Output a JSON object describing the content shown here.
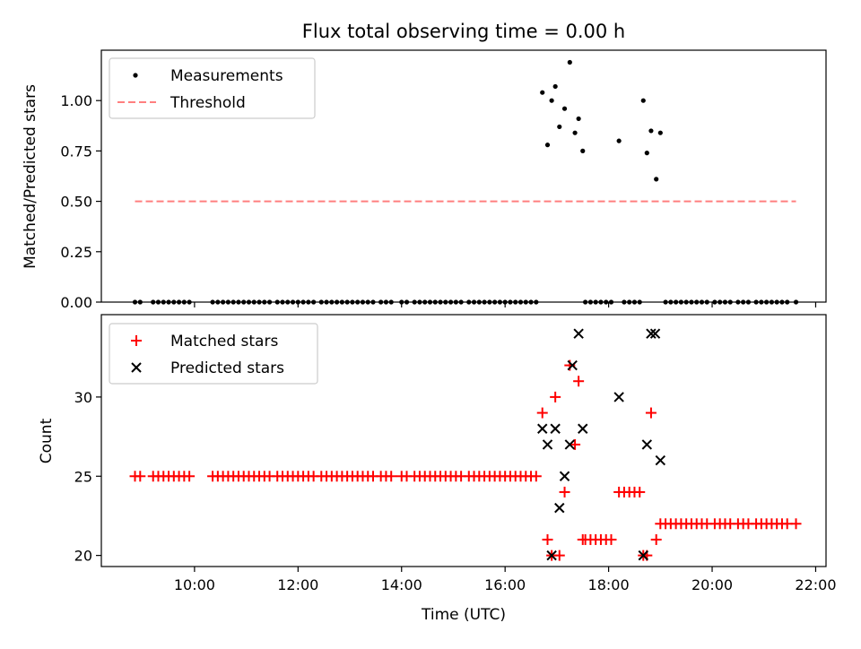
{
  "chart_data": [
    {
      "type": "scatter",
      "title": "Flux total observing time = 0.00 h",
      "xlabel": "",
      "ylabel": "Matched/Predicted stars",
      "ylim": [
        0,
        1.25
      ],
      "xlim_hours": [
        8.2,
        22.2
      ],
      "yticks": [
        0.0,
        0.25,
        0.5,
        0.75,
        1.0
      ],
      "ytick_labels": [
        "0.00",
        "0.25",
        "0.50",
        "0.75",
        "1.00"
      ],
      "legend_position": "top-left",
      "series": [
        {
          "name": "Measurements",
          "marker": "dot",
          "color": "#000000",
          "x_hours": [
            8.85,
            8.95,
            9.2,
            9.3,
            9.4,
            9.5,
            9.6,
            9.7,
            9.8,
            9.9,
            10.35,
            10.45,
            10.55,
            10.65,
            10.75,
            10.85,
            10.95,
            11.05,
            11.15,
            11.25,
            11.35,
            11.45,
            11.6,
            11.7,
            11.8,
            11.9,
            12.0,
            12.1,
            12.2,
            12.3,
            12.45,
            12.55,
            12.65,
            12.75,
            12.85,
            12.95,
            13.05,
            13.15,
            13.25,
            13.35,
            13.45,
            13.6,
            13.7,
            13.8,
            14.0,
            14.1,
            14.25,
            14.35,
            14.45,
            14.55,
            14.65,
            14.75,
            14.85,
            14.95,
            15.05,
            15.15,
            15.3,
            15.4,
            15.5,
            15.6,
            15.7,
            15.8,
            15.9,
            16.0,
            16.1,
            16.2,
            16.3,
            16.4,
            16.5,
            16.6,
            16.72,
            16.82,
            16.9,
            16.97,
            17.05,
            17.15,
            17.25,
            17.35,
            17.42,
            17.5,
            17.55,
            17.65,
            17.75,
            17.85,
            17.95,
            18.05,
            18.2,
            18.3,
            18.4,
            18.5,
            18.6,
            18.67,
            18.74,
            18.82,
            18.92,
            19.0,
            19.1,
            19.2,
            19.3,
            19.4,
            19.5,
            19.6,
            19.7,
            19.8,
            19.9,
            20.05,
            20.15,
            20.25,
            20.35,
            20.5,
            20.6,
            20.7,
            20.85,
            20.95,
            21.05,
            21.15,
            21.25,
            21.35,
            21.45,
            21.62
          ],
          "y": [
            0,
            0,
            0,
            0,
            0,
            0,
            0,
            0,
            0,
            0,
            0,
            0,
            0,
            0,
            0,
            0,
            0,
            0,
            0,
            0,
            0,
            0,
            0,
            0,
            0,
            0,
            0,
            0,
            0,
            0,
            0,
            0,
            0,
            0,
            0,
            0,
            0,
            0,
            0,
            0,
            0,
            0,
            0,
            0,
            0,
            0,
            0,
            0,
            0,
            0,
            0,
            0,
            0,
            0,
            0,
            0,
            0,
            0,
            0,
            0,
            0,
            0,
            0,
            0,
            0,
            0,
            0,
            0,
            0,
            0,
            1.04,
            0.78,
            1.0,
            1.07,
            0.87,
            0.96,
            1.19,
            0.84,
            0.91,
            0.75,
            0,
            0,
            0,
            0,
            0,
            0,
            0.8,
            0,
            0,
            0,
            0,
            1.0,
            0.74,
            0.85,
            0.61,
            0.84,
            0,
            0,
            0,
            0,
            0,
            0,
            0,
            0,
            0,
            0,
            0,
            0,
            0,
            0,
            0,
            0,
            0,
            0,
            0,
            0,
            0,
            0,
            0,
            0
          ]
        },
        {
          "name": "Threshold",
          "marker": "dashed-line",
          "color": "#ff7f7f",
          "x_hours": [
            8.85,
            21.62
          ],
          "y": [
            0.5,
            0.5
          ]
        }
      ]
    },
    {
      "type": "scatter",
      "title": "",
      "xlabel": "Time (UTC)",
      "ylabel": "Count",
      "ylim": [
        19.3,
        35.2
      ],
      "xlim_hours": [
        8.2,
        22.2
      ],
      "yticks": [
        20,
        25,
        30
      ],
      "ytick_labels": [
        "20",
        "25",
        "30"
      ],
      "xticks_hours": [
        10,
        12,
        14,
        16,
        18,
        20,
        22
      ],
      "xtick_labels": [
        "10:00",
        "12:00",
        "14:00",
        "16:00",
        "18:00",
        "20:00",
        "22:00"
      ],
      "legend_position": "top-left",
      "series": [
        {
          "name": "Matched stars",
          "marker": "plus",
          "color": "#ff0000",
          "x_hours": [
            8.85,
            8.95,
            9.2,
            9.3,
            9.4,
            9.5,
            9.6,
            9.7,
            9.8,
            9.9,
            10.35,
            10.45,
            10.55,
            10.65,
            10.75,
            10.85,
            10.95,
            11.05,
            11.15,
            11.25,
            11.35,
            11.45,
            11.6,
            11.7,
            11.8,
            11.9,
            12.0,
            12.1,
            12.2,
            12.3,
            12.45,
            12.55,
            12.65,
            12.75,
            12.85,
            12.95,
            13.05,
            13.15,
            13.25,
            13.35,
            13.45,
            13.6,
            13.7,
            13.8,
            14.0,
            14.1,
            14.25,
            14.35,
            14.45,
            14.55,
            14.65,
            14.75,
            14.85,
            14.95,
            15.05,
            15.15,
            15.3,
            15.4,
            15.5,
            15.6,
            15.7,
            15.8,
            15.9,
            16.0,
            16.1,
            16.2,
            16.3,
            16.4,
            16.5,
            16.6,
            16.72,
            16.82,
            16.9,
            16.97,
            17.05,
            17.15,
            17.25,
            17.35,
            17.42,
            17.5,
            17.55,
            17.65,
            17.75,
            17.85,
            17.95,
            18.05,
            18.2,
            18.3,
            18.4,
            18.5,
            18.6,
            18.67,
            18.74,
            18.82,
            18.92,
            19.0,
            19.1,
            19.2,
            19.3,
            19.4,
            19.5,
            19.6,
            19.7,
            19.8,
            19.9,
            20.05,
            20.15,
            20.25,
            20.35,
            20.5,
            20.6,
            20.7,
            20.85,
            20.95,
            21.05,
            21.15,
            21.25,
            21.35,
            21.45,
            21.62
          ],
          "y": [
            25,
            25,
            25,
            25,
            25,
            25,
            25,
            25,
            25,
            25,
            25,
            25,
            25,
            25,
            25,
            25,
            25,
            25,
            25,
            25,
            25,
            25,
            25,
            25,
            25,
            25,
            25,
            25,
            25,
            25,
            25,
            25,
            25,
            25,
            25,
            25,
            25,
            25,
            25,
            25,
            25,
            25,
            25,
            25,
            25,
            25,
            25,
            25,
            25,
            25,
            25,
            25,
            25,
            25,
            25,
            25,
            25,
            25,
            25,
            25,
            25,
            25,
            25,
            25,
            25,
            25,
            25,
            25,
            25,
            25,
            29,
            21,
            20,
            30,
            20,
            24,
            32,
            27,
            31,
            21,
            21,
            21,
            21,
            21,
            21,
            21,
            24,
            24,
            24,
            24,
            24,
            20,
            20,
            29,
            21,
            22,
            22,
            22,
            22,
            22,
            22,
            22,
            22,
            22,
            22,
            22,
            22,
            22,
            22,
            22,
            22,
            22,
            22,
            22,
            22,
            22,
            22,
            22,
            22,
            22
          ]
        },
        {
          "name": "Predicted stars",
          "marker": "x",
          "color": "#000000",
          "x_hours": [
            16.72,
            16.82,
            16.9,
            16.97,
            17.05,
            17.15,
            17.25,
            17.3,
            17.42,
            17.5,
            18.2,
            18.67,
            18.74,
            18.82,
            18.9,
            19.0
          ],
          "y": [
            28,
            27,
            20,
            28,
            23,
            25,
            27,
            32,
            34,
            28,
            30,
            20,
            27,
            34,
            34,
            26
          ]
        }
      ]
    }
  ]
}
